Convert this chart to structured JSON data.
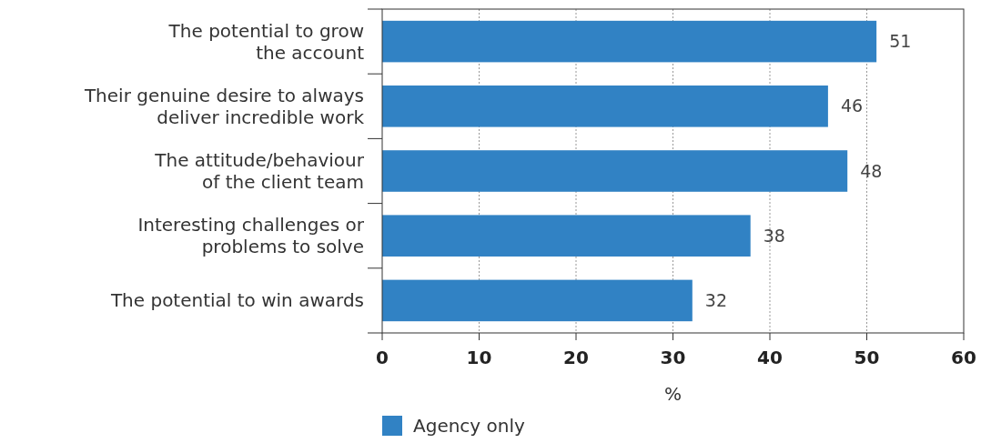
{
  "chart_data": {
    "type": "bar",
    "orientation": "horizontal",
    "categories": [
      "The potential to grow\nthe account",
      "Their genuine desire to always\ndeliver incredible work",
      "The attitude/behaviour\nof the client team",
      "Interesting challenges or\nproblems to solve",
      "The potential to win awards"
    ],
    "series": [
      {
        "name": "Agency only",
        "color": "#3182c4",
        "values": [
          51,
          46,
          48,
          38,
          32
        ]
      }
    ],
    "xlim": [
      0,
      60
    ],
    "xticks": [
      0,
      10,
      20,
      30,
      40,
      50,
      60
    ],
    "xlabel": "%",
    "grid": "x",
    "legend": "bottom",
    "data_labels": true
  }
}
